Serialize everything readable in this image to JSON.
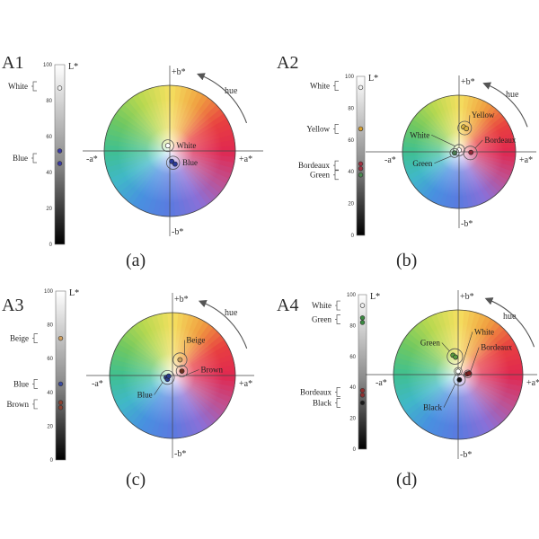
{
  "axes": {
    "b_pos": "+b*",
    "b_neg": "-b*",
    "a_pos": "+a*",
    "a_neg": "-a*",
    "lightness": "L*",
    "hue": "hue"
  },
  "panels": [
    {
      "id": "A1",
      "caption": "(a)",
      "ticks": [
        "100",
        "80",
        "60",
        "40",
        "20",
        "0"
      ],
      "side_labels": [
        {
          "text": "White",
          "L": 88
        },
        {
          "text": "Blue",
          "L": 48
        }
      ],
      "bar_dots": [
        {
          "L": 87,
          "color": "#f2f2f2"
        },
        {
          "L": 52,
          "color": "#3a3aa8"
        },
        {
          "L": 45,
          "color": "#3a3aa8"
        }
      ],
      "clusters": [
        {
          "label": "White",
          "a": -0.03,
          "b": 0.08,
          "r": 0.09,
          "dots": [
            [
              "#ffffff",
              0,
              0
            ]
          ]
        },
        {
          "label": "Blue",
          "a": 0.05,
          "b": -0.18,
          "r": 0.1,
          "dots": [
            [
              "#2a3a9a",
              -0.02,
              0.02
            ],
            [
              "#2a3a9a",
              0.03,
              -0.02
            ]
          ]
        }
      ]
    },
    {
      "id": "A2",
      "caption": "(b)",
      "ticks": [
        "100",
        "80",
        "60",
        "40",
        "20",
        "0"
      ],
      "side_labels": [
        {
          "text": "White",
          "L": 94
        },
        {
          "text": "Yellow",
          "L": 67
        },
        {
          "text": "Bordeaux",
          "L": 44
        },
        {
          "text": "Green",
          "L": 38
        }
      ],
      "bar_dots": [
        {
          "L": 93,
          "color": "#f2f2f2"
        },
        {
          "L": 67,
          "color": "#d8a030"
        },
        {
          "L": 45,
          "color": "#a03040"
        },
        {
          "L": 42,
          "color": "#a03040"
        },
        {
          "L": 38,
          "color": "#4a8a50"
        }
      ],
      "clusters": [
        {
          "label": "Yellow",
          "a": 0.1,
          "b": 0.42,
          "r": 0.12,
          "dots": [
            [
              "#d8b040",
              -0.02,
              0.02
            ],
            [
              "#d8b040",
              0.03,
              -0.01
            ]
          ]
        },
        {
          "label": "White",
          "a": 0.0,
          "b": 0.03,
          "r": 0.1,
          "dots": [
            [
              "#ffffff",
              0,
              0
            ]
          ]
        },
        {
          "label": "Bordeaux",
          "a": 0.2,
          "b": -0.02,
          "r": 0.12,
          "dots": [
            [
              "#902838",
              0.01,
              0.01
            ]
          ]
        },
        {
          "label": "Green",
          "a": -0.08,
          "b": -0.02,
          "r": 0.08,
          "dots": [
            [
              "#4a7a50",
              0,
              0
            ]
          ]
        }
      ],
      "text_pos": {
        "Yellow": [
          0.22,
          0.6
        ],
        "White": [
          -0.52,
          0.25
        ],
        "Bordeaux": [
          0.45,
          0.16
        ],
        "Green": [
          -0.47,
          -0.25
        ]
      }
    },
    {
      "id": "A3",
      "caption": "(c)",
      "ticks": [
        "100",
        "80",
        "60",
        "40",
        "20",
        "0"
      ],
      "side_labels": [
        {
          "text": "Beige",
          "L": 72
        },
        {
          "text": "Blue",
          "L": 45
        },
        {
          "text": "Brown",
          "L": 33
        }
      ],
      "bar_dots": [
        {
          "L": 72,
          "color": "#d0a060"
        },
        {
          "L": 45,
          "color": "#3a4aa0"
        },
        {
          "L": 34,
          "color": "#8a4030"
        },
        {
          "L": 31,
          "color": "#8a4030"
        }
      ],
      "clusters": [
        {
          "label": "Beige",
          "a": 0.12,
          "b": 0.25,
          "r": 0.11,
          "dots": [
            [
              "#c8a060",
              0,
              0
            ]
          ]
        },
        {
          "label": "Brown",
          "a": 0.15,
          "b": 0.07,
          "r": 0.09,
          "dots": [
            [
              "#6a3020",
              0,
              0
            ]
          ]
        },
        {
          "label": "Blue",
          "a": -0.08,
          "b": -0.03,
          "r": 0.11,
          "dots": [
            [
              "#2a3a8a",
              -0.02,
              0.0
            ],
            [
              "#2a3a8a",
              0.0,
              -0.03
            ],
            [
              "#2a3a8a",
              0.02,
              0.02
            ]
          ]
        }
      ],
      "text_pos": {
        "Beige": [
          0.22,
          0.52
        ],
        "Brown": [
          0.45,
          0.05
        ],
        "Blue": [
          -0.32,
          -0.35
        ]
      }
    },
    {
      "id": "A4",
      "caption": "(d)",
      "ticks": [
        "100",
        "80",
        "60",
        "40",
        "20",
        "0"
      ],
      "side_labels": [
        {
          "text": "White",
          "L": 93
        },
        {
          "text": "Green",
          "L": 84
        },
        {
          "text": "Bordeaux",
          "L": 37
        },
        {
          "text": "Black",
          "L": 30
        }
      ],
      "bar_dots": [
        {
          "L": 93,
          "color": "#f2f2f2"
        },
        {
          "L": 85,
          "color": "#3a8a40"
        },
        {
          "L": 82,
          "color": "#3a8a40"
        },
        {
          "L": 38,
          "color": "#903030"
        },
        {
          "L": 35,
          "color": "#903030"
        },
        {
          "L": 30,
          "color": "#1a1a1a"
        }
      ],
      "clusters": [
        {
          "label": "Green",
          "a": -0.05,
          "b": 0.28,
          "r": 0.12,
          "dots": [
            [
              "#5a9a40",
              -0.03,
              0.02
            ],
            [
              "#5a9a40",
              0.01,
              -0.01
            ]
          ]
        },
        {
          "label": "White",
          "a": 0.0,
          "b": 0.05,
          "r": 0.06,
          "dots": [
            [
              "#ffffff",
              0,
              0
            ]
          ]
        },
        {
          "label": "Bordeaux",
          "a": 0.15,
          "b": 0.01,
          "r": 0.06,
          "dots": [
            [
              "#802020",
              -0.01,
              0
            ],
            [
              "#802020",
              0.02,
              0.01
            ]
          ]
        },
        {
          "label": "Black",
          "a": 0.02,
          "b": -0.08,
          "r": 0.09,
          "dots": [
            [
              "#111111",
              0,
              0
            ]
          ]
        }
      ],
      "text_pos": {
        "Green": [
          -0.28,
          0.45
        ],
        "White": [
          0.25,
          0.62
        ],
        "Bordeaux": [
          0.35,
          0.38
        ],
        "Black": [
          -0.25,
          -0.55
        ]
      }
    }
  ]
}
